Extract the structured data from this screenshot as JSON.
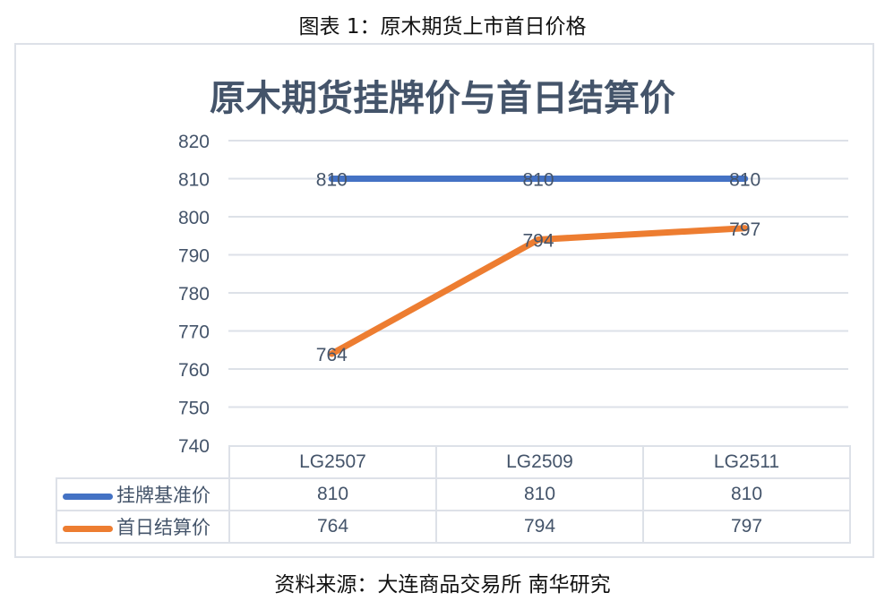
{
  "figure_caption": "图表 1：原木期货上市首日价格",
  "source_note": "资料来源：大连商品交易所 南华研究",
  "chart_data": {
    "type": "line",
    "title": "原木期货挂牌价与首日结算价",
    "categories": [
      "LG2507",
      "LG2509",
      "LG2511"
    ],
    "series": [
      {
        "name": "挂牌基准价",
        "color": "#4472c4",
        "values": [
          810,
          810,
          810
        ]
      },
      {
        "name": "首日结算价",
        "color": "#ed7d31",
        "values": [
          764,
          794,
          797
        ]
      }
    ],
    "xlabel": "",
    "ylabel": "",
    "ylim": [
      740,
      820
    ],
    "yticks": [
      740,
      750,
      760,
      770,
      780,
      790,
      800,
      810,
      820
    ],
    "grid": true,
    "data_labels": true,
    "legend_position": "data-table"
  },
  "table": {
    "headers": [
      "LG2507",
      "LG2509",
      "LG2511"
    ],
    "rows": [
      {
        "label": "挂牌基准价",
        "values": [
          "810",
          "810",
          "810"
        ]
      },
      {
        "label": "首日结算价",
        "values": [
          "764",
          "794",
          "797"
        ]
      }
    ]
  },
  "y_ticks": [
    "820",
    "810",
    "800",
    "790",
    "780",
    "770",
    "760",
    "750",
    "740"
  ]
}
